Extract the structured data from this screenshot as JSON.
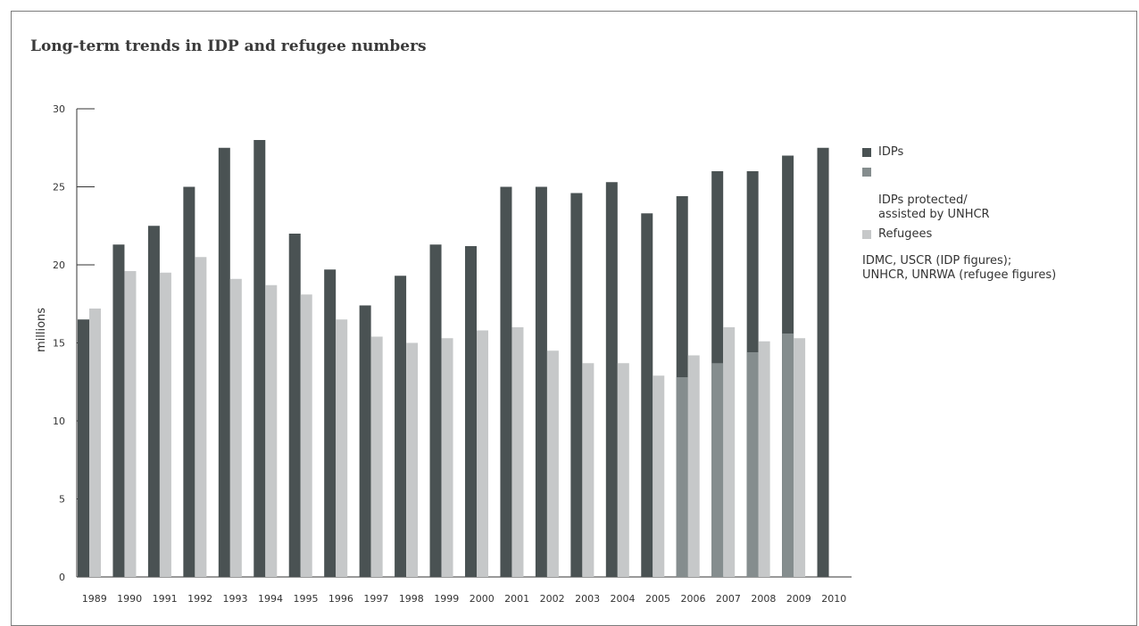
{
  "chart_data": {
    "type": "bar",
    "title": "Long-term trends in IDP and refugee numbers",
    "ylabel": "millions",
    "ylim": [
      0,
      30
    ],
    "yticks": [
      0,
      5,
      10,
      15,
      20,
      25,
      30
    ],
    "categories": [
      "1989",
      "1990",
      "1991",
      "1992",
      "1993",
      "1994",
      "1995",
      "1996",
      "1997",
      "1998",
      "1999",
      "2000",
      "2001",
      "2002",
      "2003",
      "2004",
      "2005",
      "2006",
      "2007",
      "2008",
      "2009",
      "2010"
    ],
    "series": [
      {
        "name": "IDPs",
        "color": "#4a5253",
        "values": [
          16.5,
          21.3,
          22.5,
          25.0,
          27.5,
          28.0,
          22.0,
          19.7,
          17.4,
          19.3,
          21.3,
          21.2,
          25.0,
          25.0,
          24.6,
          25.3,
          23.3,
          24.4,
          26.0,
          26.0,
          27.0,
          27.5
        ]
      },
      {
        "name": "IDPs protected/ assisted by UNHCR",
        "color": "#858d8e",
        "values": [
          null,
          null,
          null,
          null,
          null,
          null,
          null,
          null,
          null,
          null,
          null,
          null,
          null,
          null,
          null,
          null,
          null,
          12.8,
          13.7,
          14.4,
          15.6,
          null
        ]
      },
      {
        "name": "Refugees",
        "color": "#c6c8c9",
        "values": [
          17.2,
          19.6,
          19.5,
          20.5,
          19.1,
          18.7,
          18.1,
          16.5,
          15.4,
          15.0,
          15.3,
          15.8,
          16.0,
          14.5,
          13.7,
          13.7,
          12.9,
          14.2,
          16.0,
          15.1,
          15.3,
          null
        ]
      }
    ],
    "legend_position": "right",
    "grid": false
  },
  "legend": {
    "items": [
      {
        "label": "IDPs",
        "color": "#4a5253"
      },
      {
        "label": "IDPs protected/\nassisted by UNHCR",
        "color": "#858d8e"
      },
      {
        "label": "Refugees",
        "color": "#c6c8c9"
      }
    ],
    "source": "IDMC, USCR (IDP figures);\nUNHCR, UNRWA (refugee figures)"
  }
}
